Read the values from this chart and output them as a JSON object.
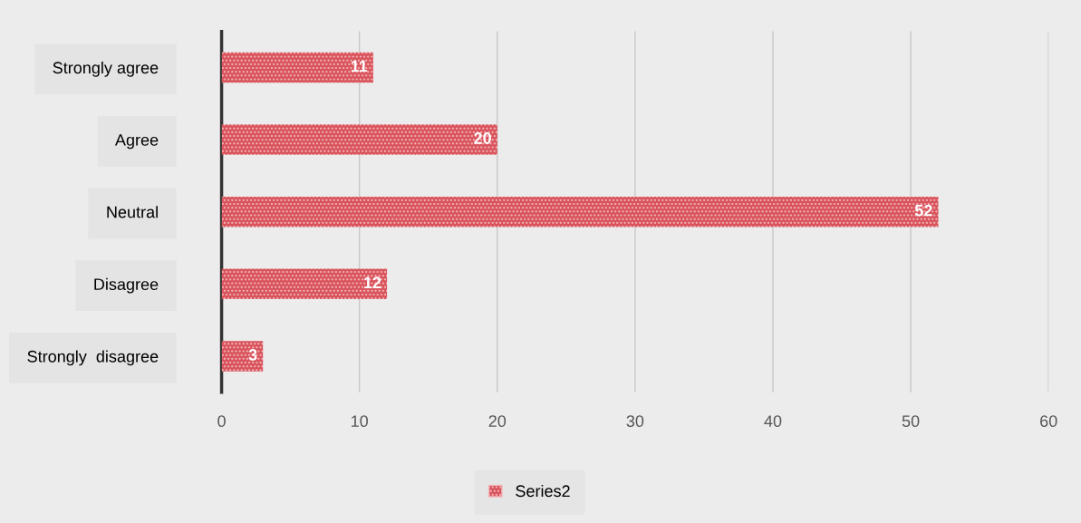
{
  "chart_data": {
    "type": "bar",
    "orientation": "horizontal",
    "categories": [
      "Strongly agree",
      "Agree",
      "Neutral",
      "Disagree",
      "Strongly  disagree"
    ],
    "series": [
      {
        "name": "Series2",
        "color": "#d9545c",
        "values": [
          11,
          20,
          52,
          12,
          3
        ]
      }
    ],
    "xlim": [
      0,
      60
    ],
    "xticks": [
      0,
      10,
      20,
      30,
      40,
      50,
      60
    ],
    "grid": "x",
    "legend": "bottom",
    "data_labels": true
  }
}
